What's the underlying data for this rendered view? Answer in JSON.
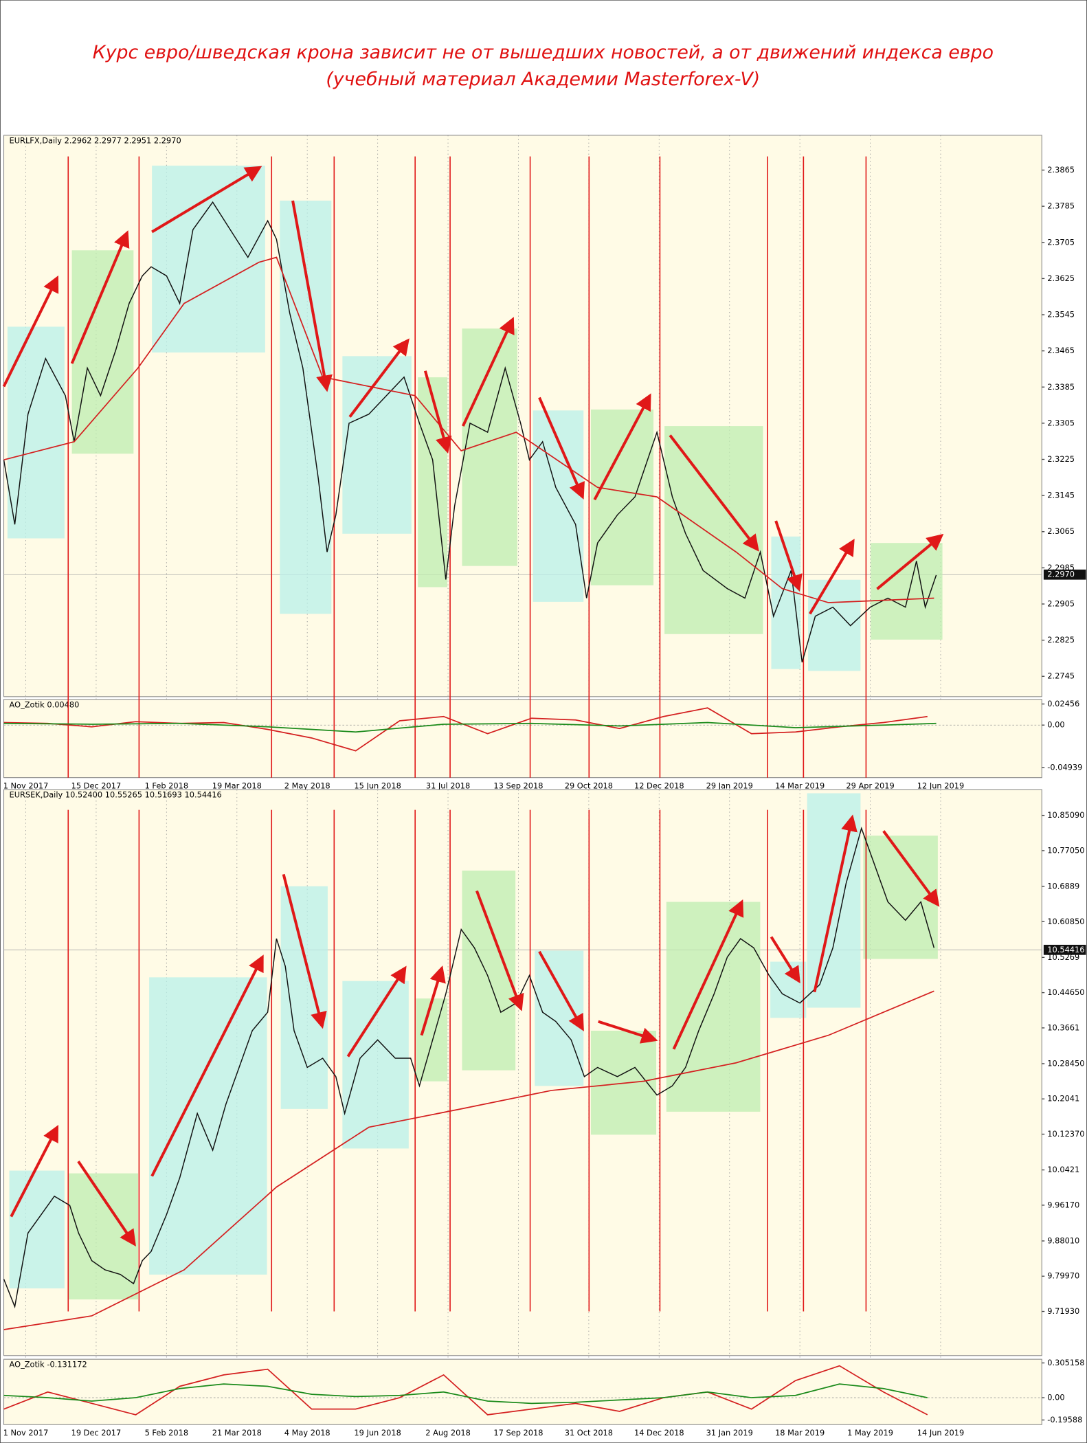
{
  "title": [
    "Курс евро/шведская крона зависит не от вышедших новостей, а от движений индекса евро",
    "(учебный материал Академии Masterforex-V)"
  ],
  "chart_data": [
    {
      "type": "line",
      "header": "EURLFX,Daily  2.2962 2.2977 2.2951 2.2970",
      "xlim": [
        0,
        472
      ],
      "ylim": [
        2.27,
        2.3942
      ],
      "xticks": [
        {
          "value": 10,
          "label": "1 Nov 2017"
        },
        {
          "value": 42,
          "label": "15 Dec 2017"
        },
        {
          "value": 74,
          "label": "1 Feb 2018"
        },
        {
          "value": 106,
          "label": "19 Mar 2018"
        },
        {
          "value": 138,
          "label": "2 May 2018"
        },
        {
          "value": 170,
          "label": "15 Jun 2018"
        },
        {
          "value": 202,
          "label": "31 Jul 2018"
        },
        {
          "value": 234,
          "label": "13 Sep 2018"
        },
        {
          "value": 266,
          "label": "29 Oct 2018"
        },
        {
          "value": 298,
          "label": "12 Dec 2018"
        },
        {
          "value": 330,
          "label": "29 Jan 2019"
        },
        {
          "value": 362,
          "label": "14 Mar 2019"
        },
        {
          "value": 394,
          "label": "29 Apr 2019"
        },
        {
          "value": 426,
          "label": "12 Jun 2019"
        }
      ],
      "yticks": [
        2.3865,
        2.3785,
        2.3705,
        2.3625,
        2.3545,
        2.3465,
        2.3385,
        2.3305,
        2.3225,
        2.3145,
        2.3065,
        2.2985,
        2.2905,
        2.2825,
        2.2745
      ],
      "current": {
        "value": 2.297,
        "label": "2.2970"
      },
      "series": [
        {
          "color": "#111111",
          "x": [
            0,
            5,
            11,
            19,
            28,
            32,
            38,
            44,
            51,
            57,
            63,
            67,
            74,
            80,
            86,
            95,
            103,
            111,
            120,
            124,
            130,
            136,
            143,
            147,
            151,
            157,
            166,
            174,
            182,
            189,
            195,
            201,
            205,
            212,
            220,
            228,
            235,
            239,
            245,
            251,
            260,
            265,
            270,
            279,
            287,
            297,
            304,
            310,
            318,
            329,
            337,
            344,
            350,
            358,
            363,
            369,
            377,
            385,
            394,
            402,
            410,
            415,
            419,
            424
          ],
          "values": [
            2.3224,
            2.3081,
            2.3325,
            2.3448,
            2.3366,
            2.3264,
            2.3427,
            2.3366,
            2.3468,
            2.357,
            2.3631,
            2.3651,
            2.3631,
            2.357,
            2.3733,
            2.3794,
            2.3733,
            2.3672,
            2.3753,
            2.3712,
            2.3549,
            2.3427,
            2.3183,
            2.302,
            2.3102,
            2.3305,
            2.3325,
            2.3366,
            2.3407,
            2.3305,
            2.3224,
            2.2959,
            2.3122,
            2.3305,
            2.3285,
            2.3427,
            2.3305,
            2.3224,
            2.3264,
            2.3163,
            2.3081,
            2.2918,
            2.304,
            2.3102,
            2.3142,
            2.3285,
            2.3142,
            2.3061,
            2.2979,
            2.2939,
            2.2918,
            2.302,
            2.2878,
            2.2979,
            2.2776,
            2.2878,
            2.2898,
            2.2857,
            2.2898,
            2.2918,
            2.2898,
            2.3,
            2.2898,
            2.2969
          ]
        },
        {
          "color": "#d42020",
          "x": [
            0,
            32,
            61,
            82,
            116,
            124,
            145,
            187,
            208,
            233,
            270,
            297,
            333,
            354,
            375,
            423
          ],
          "values": [
            2.3224,
            2.3264,
            2.3427,
            2.357,
            2.3661,
            2.3672,
            2.3407,
            2.3366,
            2.3244,
            2.3285,
            2.3163,
            2.3142,
            2.302,
            2.2939,
            2.2908,
            2.2918
          ]
        }
      ]
    },
    {
      "type": "line",
      "header": "AO_Zotik 0.00480",
      "xlim": [
        0,
        472
      ],
      "ylim": [
        -0.0612,
        0.0299
      ],
      "yticks": [
        0.02456,
        {
          "value": 0,
          "label": "0.00"
        },
        -0.04939
      ],
      "series": [
        {
          "color": "#d42020",
          "x": [
            0,
            20,
            40,
            60,
            80,
            100,
            120,
            140,
            160,
            180,
            200,
            220,
            240,
            260,
            280,
            300,
            320,
            340,
            360,
            380,
            400,
            420
          ],
          "values": [
            0.003,
            0.002,
            -0.002,
            0.004,
            0.002,
            0.003,
            -0.005,
            -0.015,
            -0.03,
            0.005,
            0.01,
            -0.01,
            0.008,
            0.006,
            -0.004,
            0.01,
            0.02,
            -0.01,
            -0.008,
            -0.002,
            0.003,
            0.01
          ]
        },
        {
          "color": "#1a8a1a",
          "x": [
            0,
            40,
            80,
            120,
            160,
            200,
            240,
            280,
            320,
            360,
            400,
            424
          ],
          "values": [
            0.002,
            0.001,
            0.002,
            -0.002,
            -0.008,
            0.001,
            0.002,
            -0.001,
            0.003,
            -0.003,
            0.0,
            0.002
          ]
        }
      ]
    },
    {
      "type": "line",
      "header": "EURSEK,Daily  10.52400 10.55265 10.51693 10.54416",
      "xlim": [
        0,
        472
      ],
      "ylim": [
        9.6186,
        10.9097
      ],
      "xticks": [
        {
          "value": 10,
          "label": "1 Nov 2017"
        },
        {
          "value": 42,
          "label": "19 Dec 2017"
        },
        {
          "value": 74,
          "label": "5 Feb 2018"
        },
        {
          "value": 106,
          "label": "21 Mar 2018"
        },
        {
          "value": 138,
          "label": "4 May 2018"
        },
        {
          "value": 170,
          "label": "19 Jun 2018"
        },
        {
          "value": 202,
          "label": "2 Aug 2018"
        },
        {
          "value": 234,
          "label": "17 Sep 2018"
        },
        {
          "value": 266,
          "label": "31 Oct 2018"
        },
        {
          "value": 298,
          "label": "14 Dec 2018"
        },
        {
          "value": 330,
          "label": "31 Jan 2019"
        },
        {
          "value": 362,
          "label": "18 Mar 2019"
        },
        {
          "value": 394,
          "label": "1 May 2019"
        },
        {
          "value": 426,
          "label": "14 Jun 2019"
        }
      ],
      "yticks": [
        {
          "value": 10.8509,
          "label": "10.85090"
        },
        {
          "value": 10.7705,
          "label": "10.77050"
        },
        10.6889,
        {
          "value": 10.6085,
          "label": "10.60850"
        },
        10.5269,
        {
          "value": 10.4465,
          "label": "10.44650"
        },
        10.3661,
        {
          "value": 10.2845,
          "label": "10.28450"
        },
        10.2041,
        {
          "value": 10.1237,
          "label": "10.12370"
        },
        10.0421,
        {
          "value": 9.9617,
          "label": "9.96170"
        },
        {
          "value": 9.8801,
          "label": "9.88010"
        },
        {
          "value": 9.7997,
          "label": "9.79970"
        },
        {
          "value": 9.7193,
          "label": "9.71930"
        }
      ],
      "current": {
        "value": 10.54416,
        "label": "10.54416"
      },
      "series": [
        {
          "color": "#111111",
          "x": [
            0,
            5,
            11,
            17,
            23,
            30,
            34,
            40,
            46,
            53,
            59,
            63,
            67,
            74,
            80,
            88,
            95,
            101,
            107,
            113,
            120,
            124,
            128,
            132,
            138,
            145,
            151,
            155,
            162,
            170,
            178,
            185,
            189,
            195,
            201,
            208,
            214,
            220,
            226,
            233,
            239,
            245,
            251,
            258,
            264,
            270,
            279,
            287,
            297,
            304,
            310,
            316,
            323,
            329,
            335,
            341,
            348,
            354,
            362,
            371,
            377,
            383,
            390,
            396,
            402,
            410,
            417,
            423
          ],
          "values": [
            9.7932,
            9.7302,
            9.8981,
            9.9401,
            9.9821,
            9.9611,
            9.8981,
            9.8352,
            9.8142,
            9.8037,
            9.7827,
            9.8352,
            9.8561,
            9.9401,
            10.024,
            10.1709,
            10.087,
            10.1919,
            10.2759,
            10.3598,
            10.4018,
            10.5697,
            10.5067,
            10.3598,
            10.2759,
            10.2969,
            10.2549,
            10.1709,
            10.2969,
            10.3388,
            10.2969,
            10.2969,
            10.2339,
            10.3388,
            10.4438,
            10.5907,
            10.5487,
            10.4857,
            10.4018,
            10.4228,
            10.4857,
            10.4018,
            10.3808,
            10.3388,
            10.2549,
            10.2759,
            10.2549,
            10.2759,
            10.2129,
            10.2339,
            10.2759,
            10.3598,
            10.4438,
            10.5277,
            10.5697,
            10.5487,
            10.4857,
            10.4438,
            10.4228,
            10.4648,
            10.5487,
            10.6956,
            10.8215,
            10.7376,
            10.6536,
            10.6117,
            10.6536,
            10.5487
          ]
        },
        {
          "color": "#d42020",
          "x": [
            0,
            40,
            82,
            124,
            166,
            208,
            249,
            291,
            333,
            375,
            423
          ],
          "values": [
            9.6778,
            9.7092,
            9.8142,
            10.0031,
            10.1395,
            10.1814,
            10.2234,
            10.2444,
            10.2864,
            10.3493,
            10.4501
          ]
        }
      ]
    },
    {
      "type": "line",
      "header": "AO_Zotik -0.131172",
      "xlim": [
        0,
        472
      ],
      "ylim": [
        -0.2363,
        0.3375
      ],
      "yticks": [
        0.305158,
        {
          "value": 0,
          "label": "0.00"
        },
        -0.19588
      ],
      "series": [
        {
          "color": "#d42020",
          "x": [
            0,
            20,
            40,
            60,
            80,
            100,
            120,
            140,
            160,
            180,
            200,
            220,
            240,
            260,
            280,
            300,
            320,
            340,
            360,
            380,
            400,
            420
          ],
          "values": [
            -0.1,
            0.05,
            -0.05,
            -0.15,
            0.1,
            0.2,
            0.25,
            -0.1,
            -0.1,
            0.0,
            0.2,
            -0.15,
            -0.1,
            -0.05,
            -0.12,
            0.0,
            0.05,
            -0.1,
            0.15,
            0.28,
            0.05,
            -0.15
          ]
        },
        {
          "color": "#1a8a1a",
          "x": [
            0,
            20,
            40,
            60,
            80,
            100,
            120,
            140,
            160,
            180,
            200,
            220,
            240,
            260,
            280,
            300,
            320,
            340,
            360,
            380,
            400,
            420
          ],
          "values": [
            0.02,
            0.0,
            -0.03,
            0.0,
            0.08,
            0.12,
            0.1,
            0.03,
            0.01,
            0.02,
            0.05,
            -0.03,
            -0.05,
            -0.04,
            -0.02,
            0.0,
            0.05,
            0.0,
            0.02,
            0.12,
            0.08,
            0.0
          ]
        }
      ]
    }
  ]
}
